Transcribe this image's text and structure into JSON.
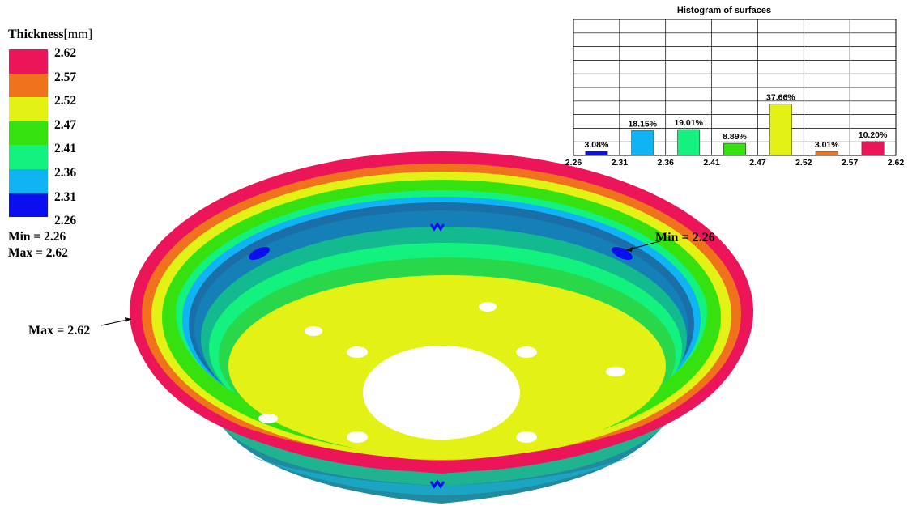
{
  "legend": {
    "title": "Thickness",
    "unit": "[mm]",
    "ticks": [
      "2.62",
      "2.57",
      "2.52",
      "2.47",
      "2.41",
      "2.36",
      "2.31",
      "2.26"
    ],
    "colors": [
      "#ec1559",
      "#f1721c",
      "#e3f214",
      "#35e20f",
      "#13f27e",
      "#10b4f4",
      "#0b0ff0"
    ],
    "min_label": "Min =  2.26",
    "max_label": "Max =  2.62"
  },
  "model": {
    "min_annotation": "Min = 2.26",
    "max_annotation": "Max = 2.62"
  },
  "chart_data": {
    "type": "bar",
    "title": "Histogram of surfaces",
    "x_ticks": [
      "2.26",
      "2.31",
      "2.36",
      "2.41",
      "2.47",
      "2.52",
      "2.57",
      "2.62"
    ],
    "bins": [
      {
        "label": "3.08%",
        "value": 3.08,
        "color": "#0b0ff0"
      },
      {
        "label": "18.15%",
        "value": 18.15,
        "color": "#10b4f4"
      },
      {
        "label": "19.01%",
        "value": 19.01,
        "color": "#13f27e"
      },
      {
        "label": "8.89%",
        "value": 8.89,
        "color": "#35e20f"
      },
      {
        "label": "37.66%",
        "value": 37.66,
        "color": "#e3f214"
      },
      {
        "label": "3.01%",
        "value": 3.01,
        "color": "#f1721c"
      },
      {
        "label": "10.20%",
        "value": 10.2,
        "color": "#ec1559"
      }
    ],
    "ymax": 100,
    "grid": true,
    "legend": "none"
  }
}
